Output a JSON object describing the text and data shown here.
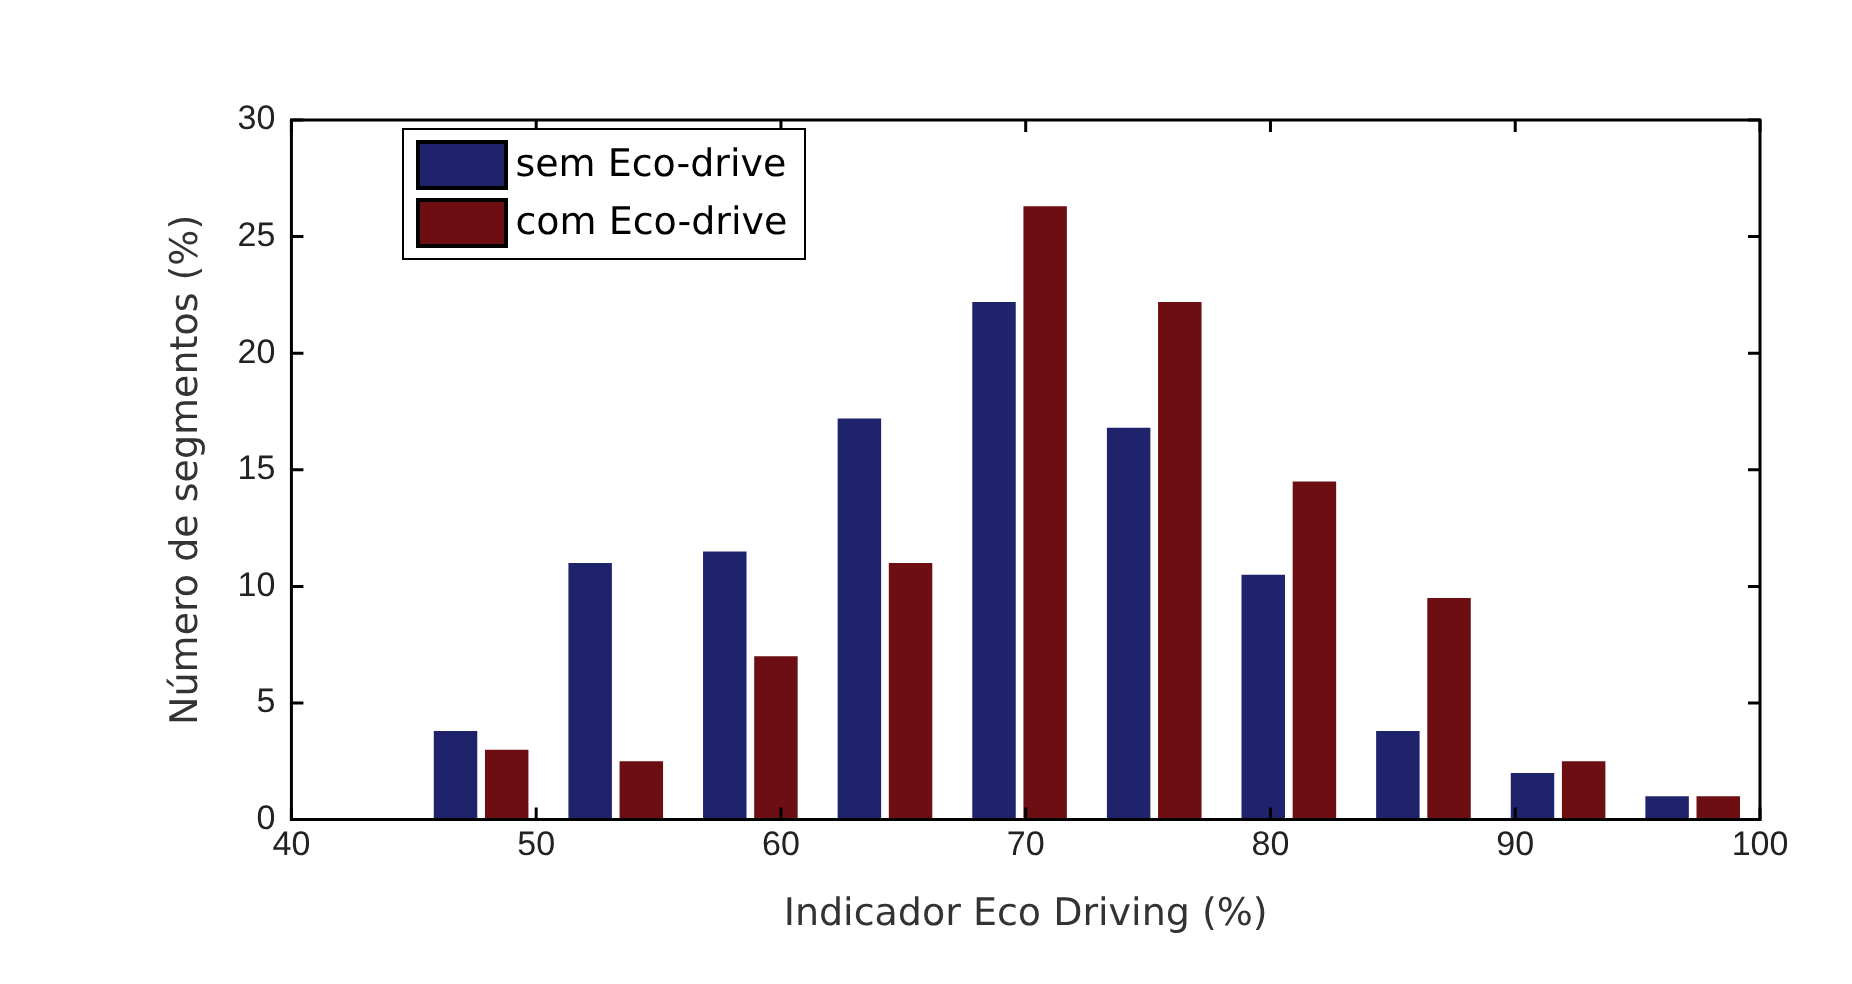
{
  "chart_data": {
    "type": "bar",
    "xlabel": "Indicador Eco Driving (%)",
    "ylabel": "Número de segmentos (%)",
    "x": [
      47.75,
      53.25,
      58.75,
      64.25,
      69.75,
      75.25,
      80.75,
      86.25,
      91.75,
      97.25
    ],
    "series": [
      {
        "name": "sem Eco-drive",
        "color": "#1f236b",
        "values": [
          3.8,
          11,
          11.5,
          17.2,
          22.2,
          16.8,
          10.5,
          3.8,
          2,
          1
        ]
      },
      {
        "name": "com Eco-drive",
        "color": "#6d0f12",
        "values": [
          3,
          2.5,
          7,
          11,
          26.3,
          22.2,
          14.5,
          9.5,
          2.5,
          1
        ]
      }
    ],
    "xlim": [
      40,
      100
    ],
    "xticks": [
      40,
      50,
      60,
      70,
      80,
      90,
      100
    ],
    "ylim": [
      0,
      30
    ],
    "yticks": [
      0,
      5,
      10,
      15,
      20,
      25,
      30
    ],
    "grid": false,
    "legend": "top left"
  }
}
